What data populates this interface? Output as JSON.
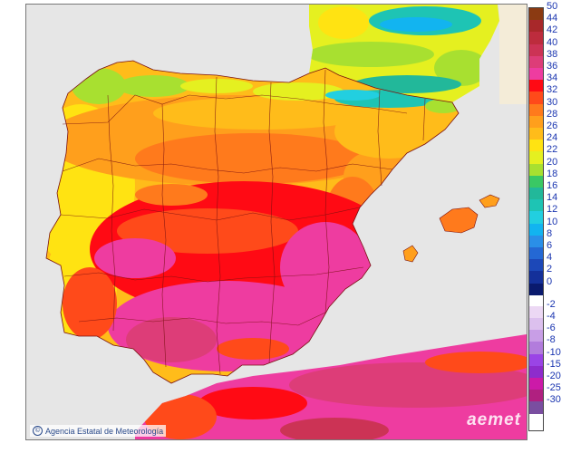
{
  "map": {
    "credit_text": "Agencia Estatal de Meteorología",
    "brand_text": "aemet",
    "background_color": "#e6e6e6",
    "sea_color": "#e6e6e6",
    "border_color": "#7a1010"
  },
  "legend": {
    "positive": [
      {
        "label": "50",
        "color": "#8b3a12"
      },
      {
        "label": "44",
        "color": "#a8282a"
      },
      {
        "label": "42",
        "color": "#bd2c3d"
      },
      {
        "label": "40",
        "color": "#cc3355"
      },
      {
        "label": "38",
        "color": "#dd3d78"
      },
      {
        "label": "36",
        "color": "#ee3ca0"
      },
      {
        "label": "34",
        "color": "#ff0a14"
      },
      {
        "label": "32",
        "color": "#ff4a1a"
      },
      {
        "label": "30",
        "color": "#ff7a1c"
      },
      {
        "label": "28",
        "color": "#ff9f1c"
      },
      {
        "label": "26",
        "color": "#ffbc1a"
      },
      {
        "label": "24",
        "color": "#ffe312"
      },
      {
        "label": "22",
        "color": "#e5f020"
      },
      {
        "label": "20",
        "color": "#a8e030"
      },
      {
        "label": "18",
        "color": "#3ac864"
      },
      {
        "label": "16",
        "color": "#22b89a"
      },
      {
        "label": "14",
        "color": "#1ec4b4"
      },
      {
        "label": "12",
        "color": "#22cfe0"
      },
      {
        "label": "10",
        "color": "#12b4f0"
      },
      {
        "label": "8",
        "color": "#2a8fe8"
      },
      {
        "label": "6",
        "color": "#2468d4"
      },
      {
        "label": "4",
        "color": "#1c48b8"
      },
      {
        "label": "2",
        "color": "#14309a"
      },
      {
        "label": "0",
        "color": "#0a1a6e"
      }
    ],
    "negative": [
      {
        "label": "-2",
        "color": "#ecd8f4"
      },
      {
        "label": "-4",
        "color": "#dcc0ee"
      },
      {
        "label": "-6",
        "color": "#c89ee6"
      },
      {
        "label": "-8",
        "color": "#b27cdc"
      },
      {
        "label": "-10",
        "color": "#9a44e6"
      },
      {
        "label": "-15",
        "color": "#8e2ccc"
      },
      {
        "label": "-20",
        "color": "#cc1aa8"
      },
      {
        "label": "-25",
        "color": "#b02080"
      },
      {
        "label": "-30",
        "color": "#7a4ea0"
      }
    ]
  }
}
